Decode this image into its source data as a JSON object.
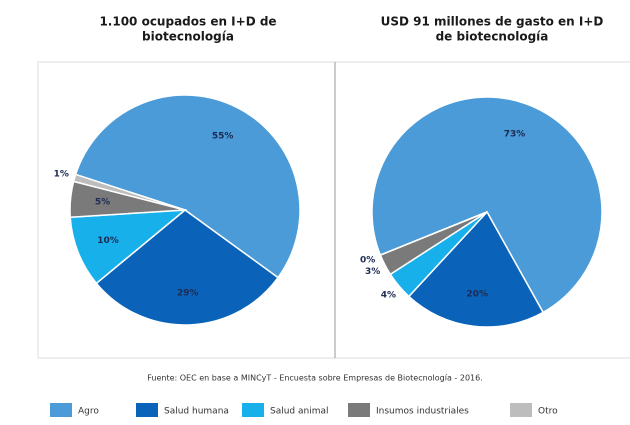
{
  "chart_data": [
    {
      "type": "pie",
      "title": [
        "1.100 ocupados en I+D de",
        "biotecnología"
      ],
      "categories": [
        "Agro",
        "Salud humana",
        "Salud animal",
        "Insumos industriales",
        "Otro"
      ],
      "values": [
        55,
        29,
        10,
        5,
        1
      ],
      "value_labels": [
        "55%",
        "29%",
        "10%",
        "5%",
        "1%"
      ],
      "colors": [
        "#4a9bd8",
        "#0a63b8",
        "#18b0ea",
        "#7a7a7a",
        "#bdbdbd"
      ]
    },
    {
      "type": "pie",
      "title": [
        "USD 91 millones de gasto en I+D",
        "de biotecnología"
      ],
      "categories": [
        "Agro",
        "Salud humana",
        "Salud animal",
        "Insumos industriales",
        "Otro"
      ],
      "values": [
        73,
        20,
        4,
        3,
        0
      ],
      "value_labels": [
        "73%",
        "20%",
        "4%",
        "3%",
        "0%"
      ],
      "colors": [
        "#4a9bd8",
        "#0a63b8",
        "#18b0ea",
        "#7a7a7a",
        "#bdbdbd"
      ]
    }
  ],
  "source": "Fuente: OEC en base a MINCyT - Encuesta sobre Empresas de Biotecnología - 2016."
}
